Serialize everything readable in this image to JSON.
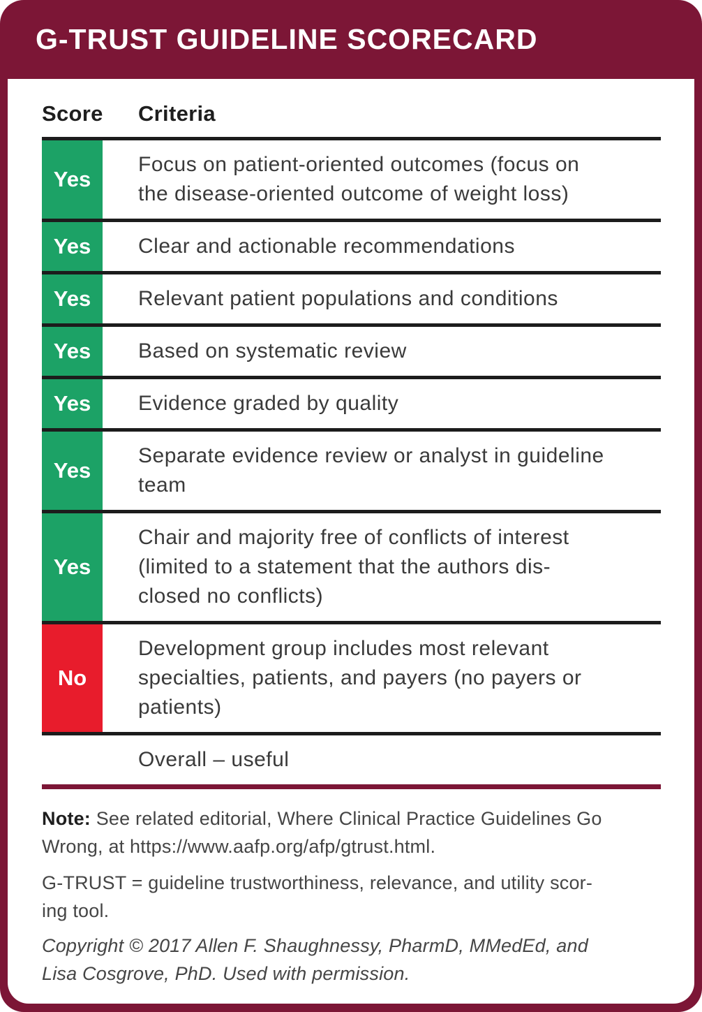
{
  "header": {
    "title": "G-TRUST GUIDELINE SCORECARD"
  },
  "table": {
    "columns": {
      "score": "Score",
      "criteria": "Criteria"
    },
    "rows": [
      {
        "score": "Yes",
        "score_color": "green",
        "criteria": "Focus on patient-oriented outcomes (focus on\nthe disease-oriented outcome of weight loss)"
      },
      {
        "score": "Yes",
        "score_color": "green",
        "criteria": "Clear and actionable recommendations"
      },
      {
        "score": "Yes",
        "score_color": "green",
        "criteria": "Relevant patient populations and conditions"
      },
      {
        "score": "Yes",
        "score_color": "green",
        "criteria": "Based on systematic review"
      },
      {
        "score": "Yes",
        "score_color": "green",
        "criteria": "Evidence graded by quality"
      },
      {
        "score": "Yes",
        "score_color": "green",
        "criteria": "Separate evidence review or analyst in guideline\nteam"
      },
      {
        "score": "Yes",
        "score_color": "green",
        "criteria": "Chair and majority free of conflicts of interest\n(limited to a statement that the authors dis-\nclosed no conflicts)"
      },
      {
        "score": "No",
        "score_color": "red",
        "criteria": "Development group includes most relevant\nspecialties, patients, and payers (no payers or\npatients)"
      },
      {
        "score": "",
        "score_color": "none",
        "criteria": "Overall – useful"
      }
    ]
  },
  "footer": {
    "note_label": "Note:",
    "note_text": " See related editorial, Where Clinical Practice Guidelines Go\nWrong, at https://www.aafp.org/afp/gtrust.html.",
    "abbreviation": "G-TRUST = guideline trustworthiness, relevance, and utility scor-\ning tool.",
    "copyright": "Copyright © 2017 Allen F. Shaughnessy, PharmD, MMedEd, and\nLisa Cosgrove, PhD. Used with permission."
  },
  "colors": {
    "maroon": "#7C1636",
    "green": "#1CA266",
    "red": "#E81C2C",
    "row_line": "#1C1C1C",
    "criteria_text": "#3A3A3A",
    "note_text": "#454545",
    "header_text": "#FFFFFF"
  }
}
